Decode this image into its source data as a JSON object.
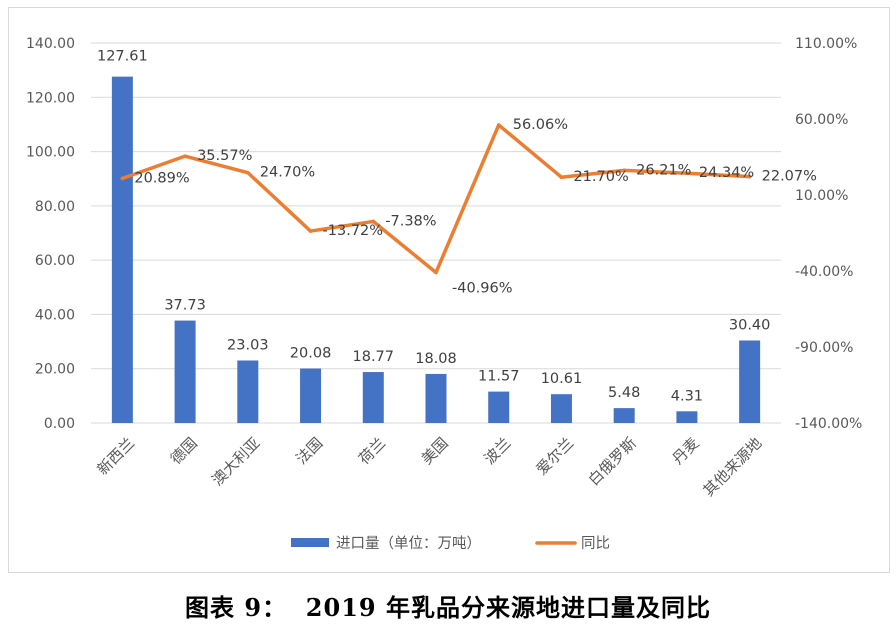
{
  "caption": "图表 9：  2019 年乳品分来源地进口量及同比",
  "colors": {
    "bar": "#4472c4",
    "line": "#ed7d31",
    "grid": "#d9d9d9",
    "text": "#595959"
  },
  "chart_data": {
    "type": "bar",
    "categories": [
      "新西兰",
      "德国",
      "澳大利亚",
      "法国",
      "荷兰",
      "美国",
      "波兰",
      "爱尔兰",
      "白俄罗斯",
      "丹麦",
      "其他来源地"
    ],
    "series": [
      {
        "name": "进口量（单位：万吨）",
        "type": "bar",
        "axis": "left",
        "values": [
          127.61,
          37.73,
          23.03,
          20.08,
          18.77,
          18.08,
          11.57,
          10.61,
          5.48,
          4.31,
          30.4
        ],
        "labels": [
          "127.61",
          "37.73",
          "23.03",
          "20.08",
          "18.77",
          "18.08",
          "11.57",
          "10.61",
          "5.48",
          "4.31",
          "30.40"
        ]
      },
      {
        "name": "同比",
        "type": "line",
        "axis": "right",
        "values": [
          20.89,
          35.57,
          24.7,
          -13.72,
          -7.38,
          -40.96,
          56.06,
          21.7,
          26.21,
          24.34,
          22.07
        ],
        "labels": [
          "20.89%",
          "35.57%",
          "24.70%",
          "-13.72%",
          "-7.38%",
          "-40.96%",
          "56.06%",
          "21.70%",
          "26.21%",
          "24.34%",
          "22.07%"
        ]
      }
    ],
    "y_left": {
      "min": 0,
      "max": 140,
      "ticks": [
        "0.00",
        "20.00",
        "40.00",
        "60.00",
        "80.00",
        "100.00",
        "120.00",
        "140.00"
      ]
    },
    "y_right": {
      "min": -140,
      "max": 110,
      "ticks": [
        "-140.00%",
        "-90.00%",
        "-40.00%",
        "10.00%",
        "60.00%",
        "110.00%"
      ]
    },
    "legend": "bottom-center",
    "grid": true
  }
}
